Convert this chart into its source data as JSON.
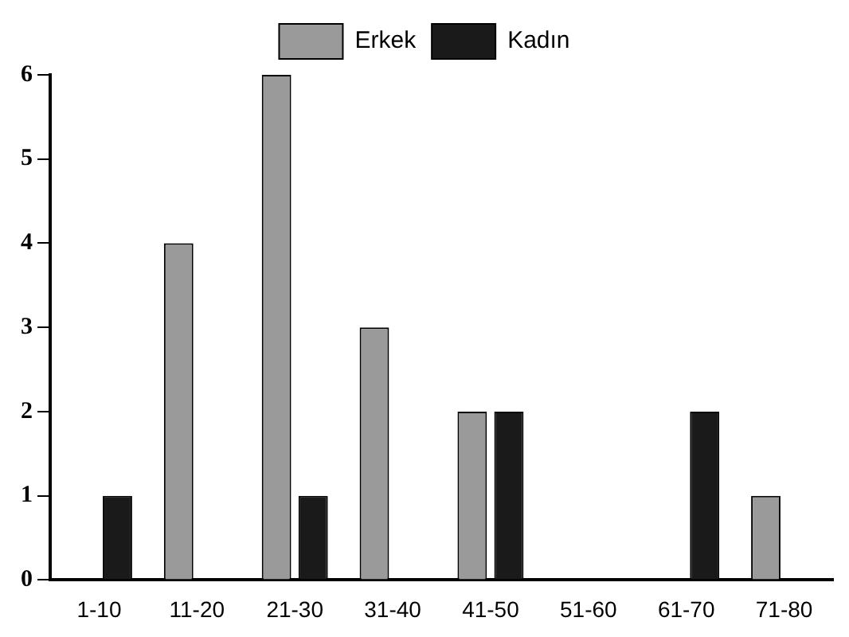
{
  "chart_data": {
    "type": "bar",
    "categories": [
      "1-10",
      "11-20",
      "21-30",
      "31-40",
      "41-50",
      "51-60",
      "61-70",
      "71-80"
    ],
    "series": [
      {
        "name": "Erkek",
        "color": "#9a9a9a",
        "values": [
          0,
          4,
          6,
          3,
          2,
          0,
          0,
          1
        ]
      },
      {
        "name": "Kadın",
        "color": "#1a1a1a",
        "values": [
          1,
          0,
          1,
          0,
          2,
          0,
          2,
          0
        ]
      }
    ],
    "ylim": [
      0,
      6
    ],
    "yticks": [
      0,
      1,
      2,
      3,
      4,
      5,
      6
    ],
    "grid": false,
    "legend": "top"
  }
}
